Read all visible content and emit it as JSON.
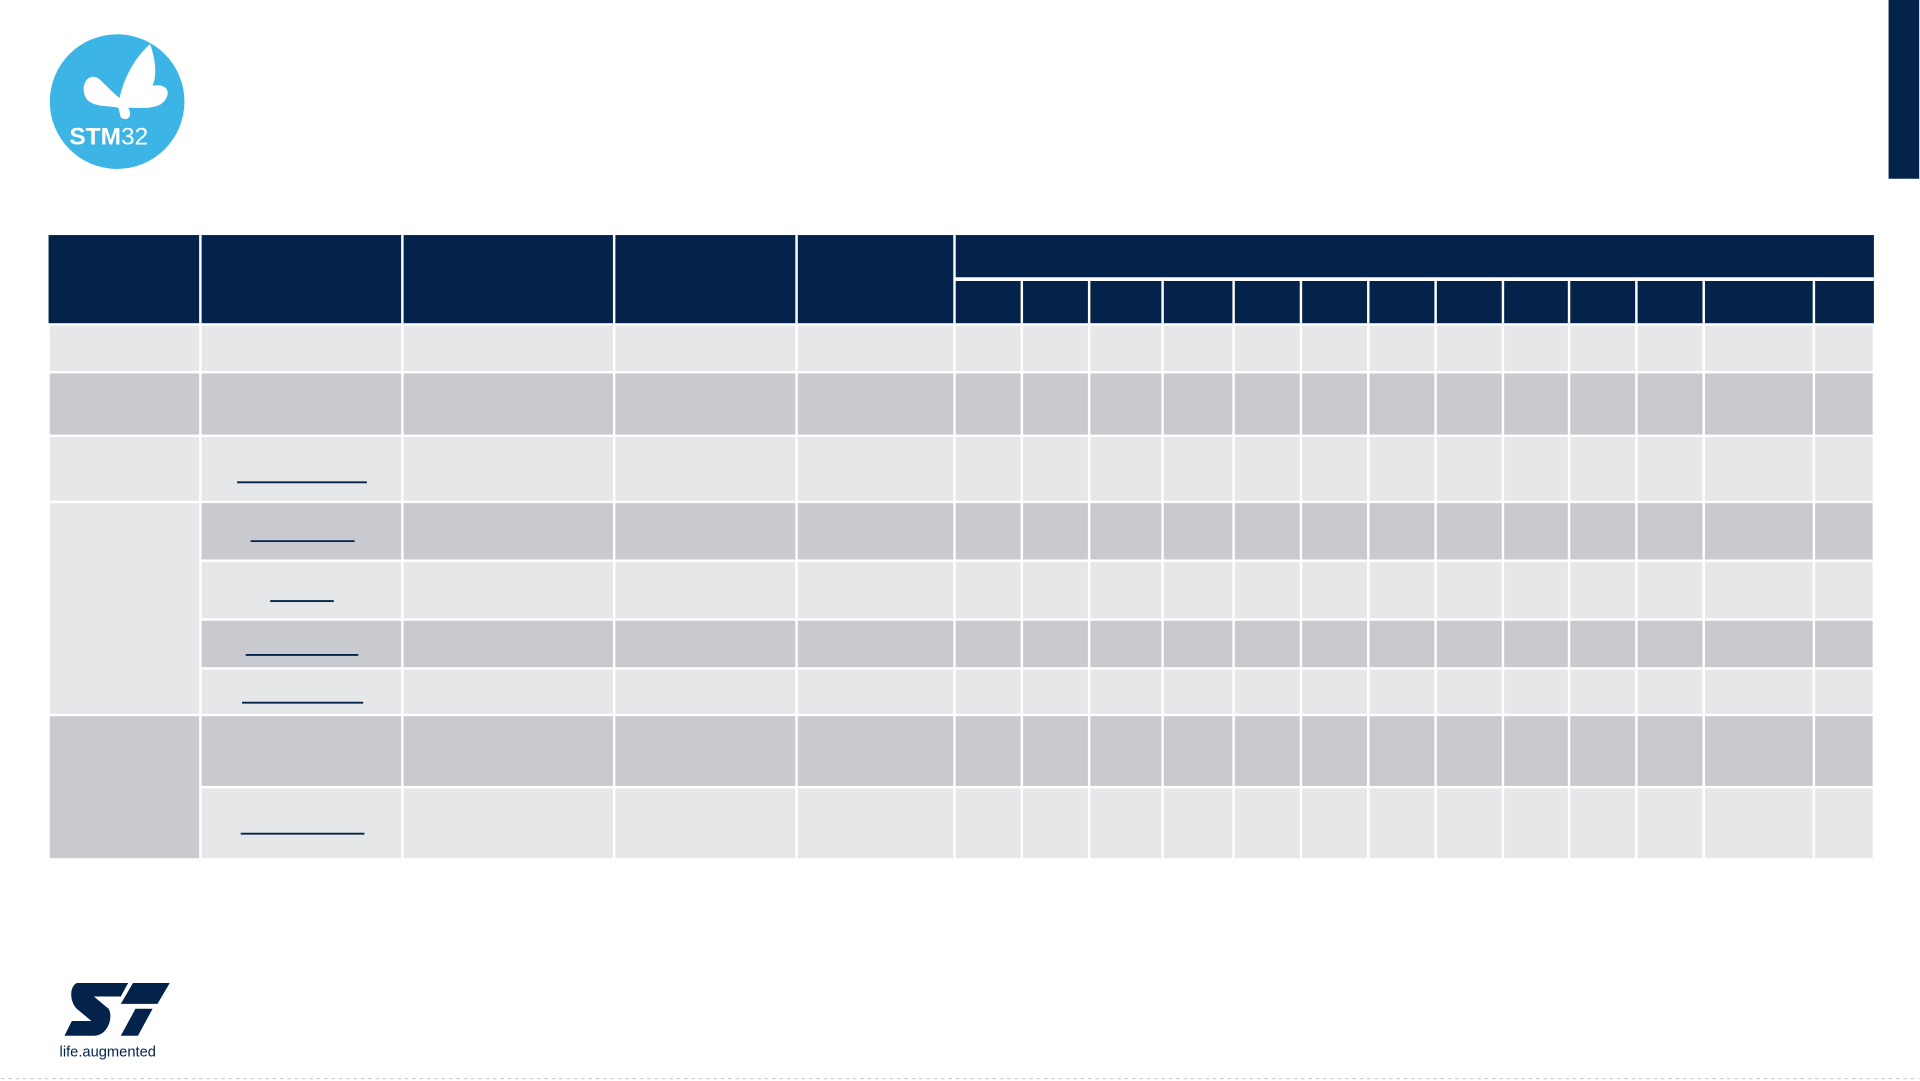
{
  "logo": {
    "text_bold": "STM",
    "text_light": "32"
  },
  "footer": {
    "tagline": "life.augmented"
  }
}
